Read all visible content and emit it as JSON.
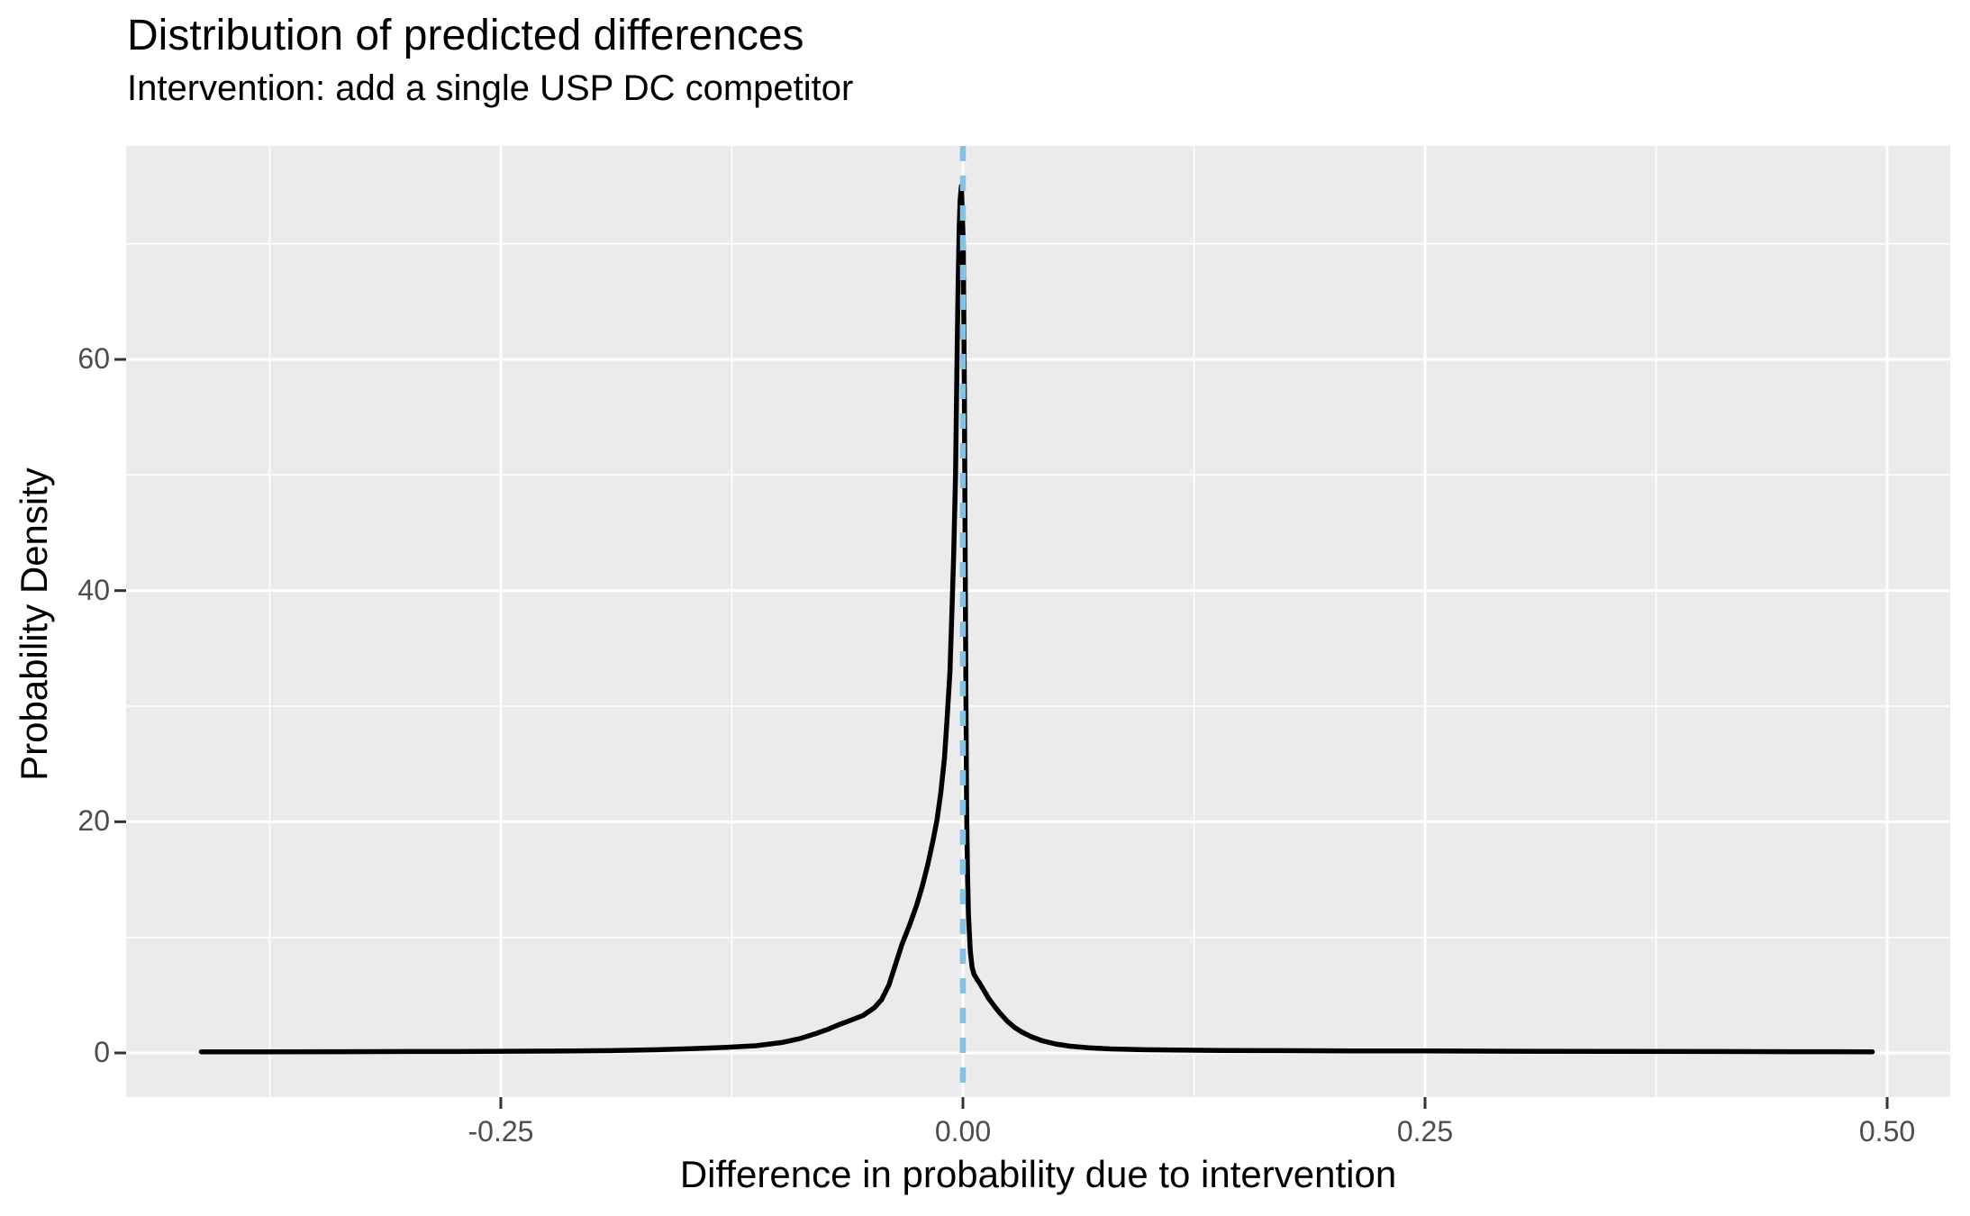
{
  "chart_data": {
    "type": "line",
    "subtype": "density",
    "title": "Distribution of predicted differences",
    "subtitle": "Intervention: add a single USP DC competitor",
    "xlabel": "Difference in probability due to intervention",
    "ylabel": "Probability Density",
    "grid": "on",
    "legend": "none",
    "panel_background_color": "#EBEBEB",
    "gridline_color": "#FFFFFF",
    "tick_mark_color": "#333333",
    "tick_label_color": "#4D4D4D",
    "x_axis": {
      "range": [
        -0.4527,
        0.5341
      ],
      "ticks": [
        {
          "value": -0.25,
          "label": "-0.25"
        },
        {
          "value": 0.0,
          "label": "0.00"
        },
        {
          "value": 0.25,
          "label": "0.25"
        },
        {
          "value": 0.5,
          "label": "0.50"
        }
      ],
      "minor_ticks": [
        -0.375,
        -0.125,
        0.125,
        0.375
      ]
    },
    "y_axis": {
      "range": [
        -3.82,
        78.47
      ],
      "ticks": [
        {
          "value": 0,
          "label": "0"
        },
        {
          "value": 20,
          "label": "20"
        },
        {
          "value": 40,
          "label": "40"
        },
        {
          "value": 60,
          "label": "60"
        }
      ],
      "minor_ticks": [
        10,
        30,
        50,
        70
      ]
    },
    "reference_line": {
      "axis": "x",
      "value": 0.0,
      "style": "dashed",
      "color": "#84C2E3"
    },
    "series": [
      {
        "name": "predicted-difference-density",
        "color": "#000000",
        "peak": {
          "x": -0.0008,
          "y": 75.0
        },
        "points": [
          [
            -0.412,
            0.1
          ],
          [
            -0.38,
            0.1
          ],
          [
            -0.34,
            0.11
          ],
          [
            -0.3,
            0.12
          ],
          [
            -0.26,
            0.13
          ],
          [
            -0.22,
            0.16
          ],
          [
            -0.19,
            0.2
          ],
          [
            -0.165,
            0.28
          ],
          [
            -0.145,
            0.38
          ],
          [
            -0.128,
            0.48
          ],
          [
            -0.112,
            0.62
          ],
          [
            -0.098,
            0.9
          ],
          [
            -0.088,
            1.25
          ],
          [
            -0.08,
            1.65
          ],
          [
            -0.073,
            2.05
          ],
          [
            -0.067,
            2.45
          ],
          [
            -0.062,
            2.75
          ],
          [
            -0.058,
            3.0
          ],
          [
            -0.054,
            3.25
          ],
          [
            -0.048,
            3.9
          ],
          [
            -0.044,
            4.6
          ],
          [
            -0.04,
            5.9
          ],
          [
            -0.037,
            7.4
          ],
          [
            -0.033,
            9.4
          ],
          [
            -0.029,
            11.0
          ],
          [
            -0.025,
            12.8
          ],
          [
            -0.022,
            14.4
          ],
          [
            -0.019,
            16.3
          ],
          [
            -0.016,
            18.5
          ],
          [
            -0.014,
            20.2
          ],
          [
            -0.012,
            22.5
          ],
          [
            -0.01,
            25.5
          ],
          [
            -0.0085,
            29.0
          ],
          [
            -0.007,
            33.0
          ],
          [
            -0.006,
            38.0
          ],
          [
            -0.005,
            43.0
          ],
          [
            -0.004,
            50.0
          ],
          [
            -0.0035,
            56.0
          ],
          [
            -0.003,
            62.0
          ],
          [
            -0.0025,
            67.0
          ],
          [
            -0.002,
            71.5
          ],
          [
            -0.0015,
            73.8
          ],
          [
            -0.0008,
            75.0
          ],
          [
            0.0002,
            70.0
          ],
          [
            0.0008,
            57.0
          ],
          [
            0.0012,
            44.0
          ],
          [
            0.0016,
            31.0
          ],
          [
            0.002,
            21.0
          ],
          [
            0.0025,
            15.5
          ],
          [
            0.003,
            12.0
          ],
          [
            0.004,
            8.8
          ],
          [
            0.005,
            7.4
          ],
          [
            0.006,
            6.8
          ],
          [
            0.0075,
            6.4
          ],
          [
            0.009,
            6.05
          ],
          [
            0.011,
            5.5
          ],
          [
            0.014,
            4.7
          ],
          [
            0.017,
            4.05
          ],
          [
            0.02,
            3.45
          ],
          [
            0.024,
            2.75
          ],
          [
            0.028,
            2.2
          ],
          [
            0.032,
            1.8
          ],
          [
            0.037,
            1.4
          ],
          [
            0.043,
            1.05
          ],
          [
            0.05,
            0.78
          ],
          [
            0.058,
            0.58
          ],
          [
            0.068,
            0.44
          ],
          [
            0.08,
            0.35
          ],
          [
            0.095,
            0.29
          ],
          [
            0.115,
            0.25
          ],
          [
            0.14,
            0.22
          ],
          [
            0.17,
            0.2
          ],
          [
            0.21,
            0.18
          ],
          [
            0.25,
            0.17
          ],
          [
            0.3,
            0.15
          ],
          [
            0.35,
            0.14
          ],
          [
            0.4,
            0.12
          ],
          [
            0.45,
            0.11
          ],
          [
            0.492,
            0.1
          ]
        ]
      }
    ]
  }
}
